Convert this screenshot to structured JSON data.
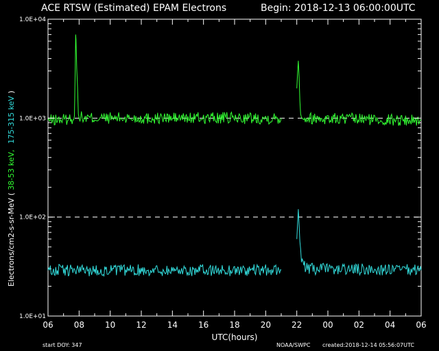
{
  "chart_data": {
    "type": "line",
    "title_left": "ACE RTSW (Estimated) EPAM Electrons",
    "title_right": "Begin: 2018-12-13 06:00:00UTC",
    "xlabel": "UTC(hours)",
    "ylabel_part1": "Electrons/cm2-s-sr-MeV  ( ",
    "ylabel_part2": "38-53 keV,",
    "ylabel_part3": "175-315 keV",
    "ylabel_part4": " )",
    "yscale": "log",
    "ylim": [
      10,
      10000
    ],
    "y_tick_labels": [
      "1.0E+01",
      "1.0E+02",
      "1.0E+03",
      "1.0E+04"
    ],
    "xlim_hours": [
      0,
      24
    ],
    "x_tick_labels": [
      "06",
      "08",
      "10",
      "12",
      "14",
      "16",
      "18",
      "20",
      "22",
      "00",
      "02",
      "04",
      "06"
    ],
    "dashed_levels": [
      1000,
      100
    ],
    "footer_left": "start DOY:  347",
    "footer_mid": "NOAA/SWPC",
    "footer_right": "created:2018-12-14 05:56:07UTC",
    "colors": {
      "s1": "#33ff33",
      "s2": "#33dddd",
      "axes": "#ffffff",
      "bg": "#000000"
    },
    "series": [
      {
        "key": "s1",
        "note": "38-53 keV",
        "typical_level": 1000,
        "segments": [
          {
            "x_hours": [
              0.0,
              1.5,
              1.7,
              1.78,
              1.95,
              2.2,
              15.0
            ],
            "y": [
              950,
              980,
              1050,
              7000,
              1100,
              1000,
              1000
            ]
          },
          {
            "x_hours": [
              16.0,
              16.1,
              16.25,
              16.5,
              24.0
            ],
            "y": [
              2000,
              3800,
              1100,
              1000,
              950
            ]
          }
        ]
      },
      {
        "key": "s2",
        "note": "175-315 keV",
        "typical_level": 29,
        "segments": [
          {
            "x_hours": [
              0.0,
              15.0
            ],
            "y": [
              29,
              29
            ]
          },
          {
            "x_hours": [
              16.0,
              16.1,
              16.3,
              16.6,
              24.0
            ],
            "y": [
              60,
              120,
              35,
              30,
              29
            ]
          }
        ]
      }
    ]
  }
}
